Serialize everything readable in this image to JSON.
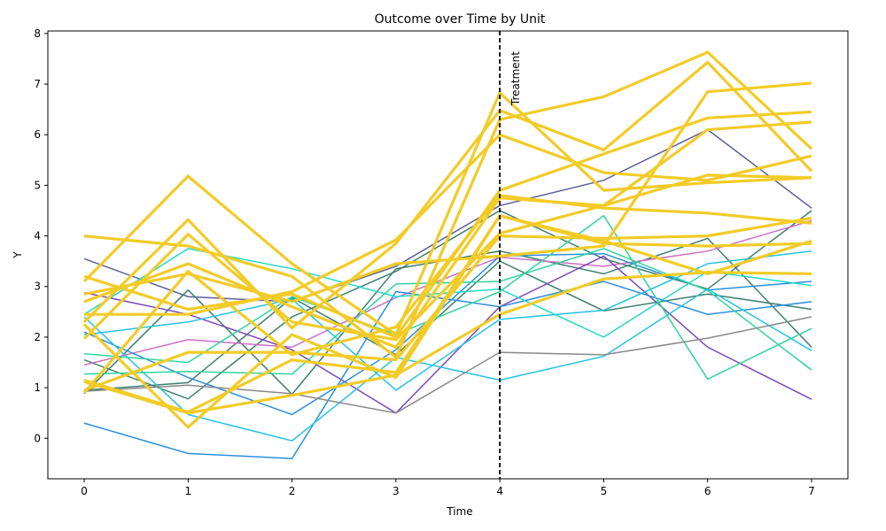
{
  "chart_data": {
    "type": "line",
    "title": "Outcome over Time by Unit",
    "xlabel": "Time",
    "ylabel": "Y",
    "x": [
      0,
      1,
      2,
      3,
      4,
      5,
      6,
      7
    ],
    "xlim": [
      -0.35,
      7.35
    ],
    "ylim": [
      -0.8,
      8.05
    ],
    "xticks": [
      0,
      1,
      2,
      3,
      4,
      5,
      6,
      7
    ],
    "yticks": [
      0,
      1,
      2,
      3,
      4,
      5,
      6,
      7,
      8
    ],
    "grid": false,
    "legend": "none",
    "annotation": {
      "text": "Treatment",
      "x": 4,
      "line_style": "dashed",
      "color": "#000000"
    },
    "series": [
      {
        "color": "#5b5e99",
        "treated": false,
        "values": [
          3.55,
          2.8,
          2.7,
          3.4,
          4.6,
          5.1,
          6.1,
          4.55
        ]
      },
      {
        "color": "#3d7f6e",
        "treated": false,
        "values": [
          0.88,
          2.93,
          0.87,
          3.35,
          3.7,
          3.25,
          3.95,
          1.8
        ]
      },
      {
        "color": "#3d7f6e",
        "treated": false,
        "values": [
          0.95,
          1.1,
          2.78,
          1.65,
          3.5,
          2.52,
          2.85,
          2.55
        ]
      },
      {
        "color": "#3d7f6e",
        "treated": false,
        "values": [
          1.55,
          0.78,
          2.4,
          3.3,
          4.5,
          3.55,
          2.95,
          4.5
        ]
      },
      {
        "color": "#cc6fc6",
        "treated": false,
        "values": [
          1.45,
          1.95,
          1.8,
          2.78,
          3.58,
          3.4,
          3.7,
          4.3
        ]
      },
      {
        "color": "#7e47b8",
        "treated": false,
        "values": [
          2.88,
          2.45,
          1.75,
          0.5,
          2.6,
          3.6,
          1.8,
          0.77
        ]
      },
      {
        "color": "#2a8fdc",
        "treated": false,
        "values": [
          0.3,
          -0.3,
          -0.4,
          2.9,
          2.6,
          3.1,
          2.45,
          2.7
        ]
      },
      {
        "color": "#2a8fdc",
        "treated": false,
        "values": [
          2.1,
          1.2,
          0.47,
          1.75,
          3.6,
          3.65,
          2.93,
          3.1
        ]
      },
      {
        "color": "#22c3e3",
        "treated": false,
        "values": [
          2.4,
          0.47,
          -0.05,
          1.6,
          1.15,
          1.62,
          2.95,
          1.73
        ]
      },
      {
        "color": "#22c3e3",
        "treated": false,
        "values": [
          2.05,
          2.3,
          2.75,
          0.95,
          2.35,
          2.53,
          3.45,
          3.7
        ]
      },
      {
        "color": "#1ed9c8",
        "treated": false,
        "values": [
          2.45,
          3.75,
          3.35,
          2.8,
          2.95,
          2.0,
          3.3,
          3.02
        ]
      },
      {
        "color": "#2ed49b",
        "treated": false,
        "values": [
          1.67,
          1.5,
          2.8,
          2.05,
          2.9,
          4.4,
          1.17,
          2.17
        ]
      },
      {
        "color": "#2ed49b",
        "treated": false,
        "values": [
          1.27,
          1.32,
          1.27,
          3.05,
          3.1,
          3.75,
          2.92,
          1.35
        ]
      },
      {
        "color": "#888888",
        "treated": false,
        "values": [
          0.93,
          1.05,
          0.88,
          0.5,
          1.7,
          1.65,
          1.98,
          2.4
        ]
      },
      {
        "color": "#f2cb27",
        "treated": true,
        "values": [
          3.1,
          5.18,
          3.45,
          2.05,
          6.83,
          4.9,
          5.05,
          5.15
        ]
      },
      {
        "color": "#f2cb27",
        "treated": true,
        "values": [
          2.3,
          4.32,
          2.18,
          3.85,
          6.48,
          5.7,
          7.43,
          5.28
        ]
      },
      {
        "color": "#f2cb27",
        "treated": true,
        "values": [
          4.0,
          3.8,
          3.2,
          1.6,
          6.3,
          6.75,
          7.63,
          5.72
        ]
      },
      {
        "color": "#f2cb27",
        "treated": true,
        "values": [
          1.97,
          4.03,
          2.3,
          1.95,
          4.05,
          4.6,
          6.1,
          6.25
        ]
      },
      {
        "color": "#f2cb27",
        "treated": true,
        "values": [
          2.85,
          3.25,
          2.7,
          3.45,
          3.6,
          3.8,
          6.85,
          7.02
        ]
      },
      {
        "color": "#f2cb27",
        "treated": true,
        "values": [
          3.2,
          2.55,
          2.85,
          2.0,
          4.9,
          5.62,
          6.33,
          6.45
        ]
      },
      {
        "color": "#f2cb27",
        "treated": true,
        "values": [
          2.45,
          2.45,
          2.9,
          3.92,
          6.0,
          5.25,
          5.1,
          5.58
        ]
      },
      {
        "color": "#f2cb27",
        "treated": true,
        "values": [
          2.7,
          3.45,
          2.6,
          1.8,
          4.75,
          4.6,
          5.2,
          5.15
        ]
      },
      {
        "color": "#f2cb27",
        "treated": true,
        "values": [
          0.9,
          3.3,
          1.65,
          2.2,
          4.8,
          4.55,
          4.45,
          4.25
        ]
      },
      {
        "color": "#f2cb27",
        "treated": true,
        "values": [
          2.25,
          0.22,
          2.05,
          1.2,
          4.4,
          3.9,
          3.25,
          3.9
        ]
      },
      {
        "color": "#f2cb27",
        "treated": true,
        "values": [
          1.15,
          0.52,
          1.55,
          1.3,
          4.4,
          3.85,
          3.8,
          3.85
        ]
      },
      {
        "color": "#f2cb27",
        "treated": true,
        "values": [
          0.95,
          1.7,
          1.7,
          1.55,
          4.0,
          3.95,
          4.0,
          4.35
        ]
      },
      {
        "color": "#f2cb27",
        "treated": true,
        "values": [
          1.12,
          0.5,
          0.85,
          1.25,
          2.45,
          3.15,
          3.28,
          3.25
        ]
      }
    ]
  }
}
